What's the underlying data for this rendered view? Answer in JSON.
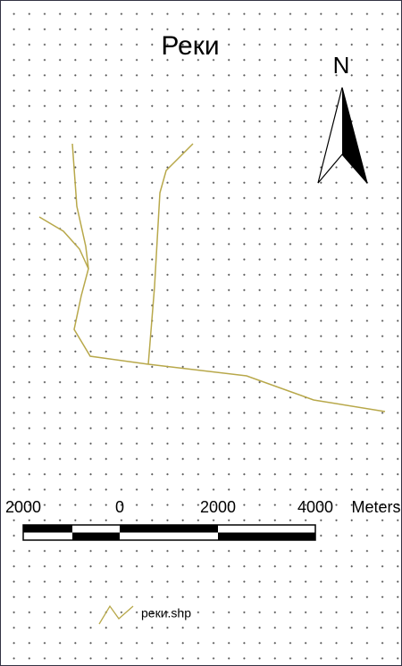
{
  "title": "Реки",
  "north_arrow": {
    "label": "N"
  },
  "scale_bar": {
    "labels": [
      "2000",
      "0",
      "2000",
      "4000"
    ],
    "unit": "Meters"
  },
  "legend": {
    "items": [
      "реки.shp"
    ]
  }
}
